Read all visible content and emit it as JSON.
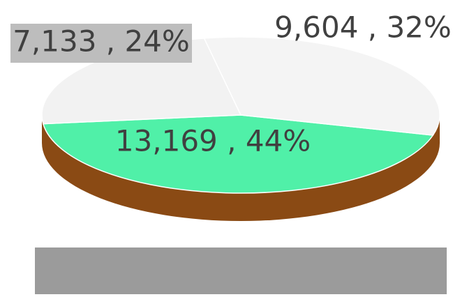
{
  "chart_data": {
    "type": "pie",
    "values": [
      13169,
      7133,
      9604
    ],
    "value_labels": [
      "13,169 , 44%",
      "7,133 , 24%",
      "9,604 , 32%"
    ],
    "colors": [
      "#50f0a8",
      "#f2f2f2",
      "#f4f4f4"
    ]
  }
}
